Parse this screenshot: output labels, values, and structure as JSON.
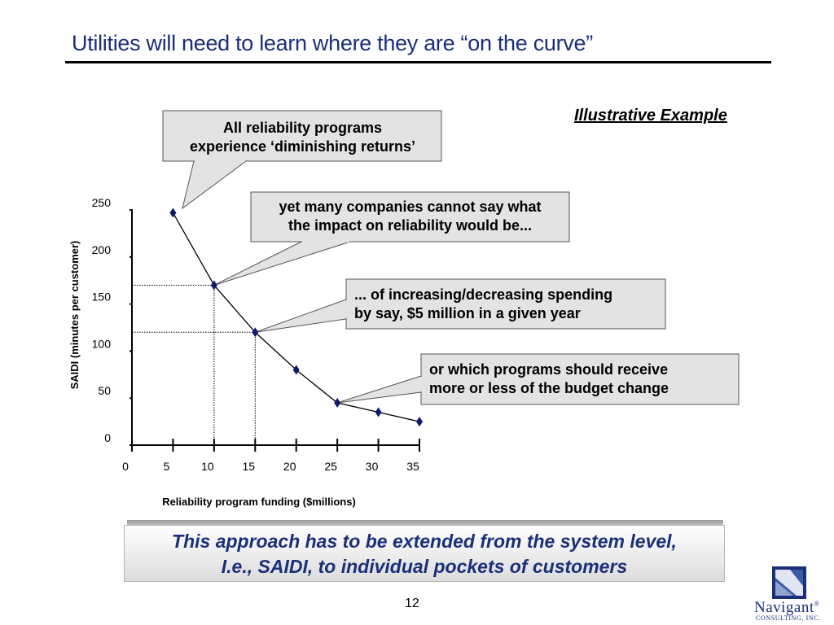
{
  "slide": {
    "title": "Utilities will need to learn where they are “on the curve”",
    "tag": "Illustrative Example",
    "page_number": "12"
  },
  "callouts": [
    {
      "lines": [
        "All reliability programs",
        "experience ‘diminishing returns’"
      ]
    },
    {
      "lines": [
        "yet many companies cannot say what",
        "the impact on reliability would be..."
      ]
    },
    {
      "lines": [
        "... of increasing/decreasing spending",
        "by say, $5 million in a given year"
      ]
    },
    {
      "lines": [
        "or which programs should receive",
        "more or less of the budget change"
      ]
    }
  ],
  "bottom_box": {
    "line1": "This approach has to be extended from the system level,",
    "line2": "I.e., SAIDI, to individual pockets of customers"
  },
  "logo": {
    "name": "Navigant",
    "tm": "®",
    "sub": "CONSULTING, INC."
  },
  "colors": {
    "title": "#1a2f7a",
    "marker": "#0d1a6e",
    "callout_fill": "#e3e3e3"
  },
  "chart_data": {
    "type": "line",
    "xlabel": "Reliability program funding ($millions)",
    "ylabel": "SAIDI (minutes per customer)",
    "xlim": [
      0,
      35
    ],
    "ylim": [
      0,
      250
    ],
    "xticks": [
      "0",
      "5",
      "10",
      "15",
      "20",
      "25",
      "30",
      "35"
    ],
    "yticks": [
      "0",
      "50",
      "100",
      "150",
      "200",
      "250"
    ],
    "grid": false,
    "series": [
      {
        "x": [
          5,
          10,
          15,
          20,
          25,
          30,
          35
        ],
        "y": [
          247,
          170,
          120,
          80,
          45,
          35,
          25
        ]
      }
    ],
    "reference_points": [
      10,
      15
    ]
  }
}
